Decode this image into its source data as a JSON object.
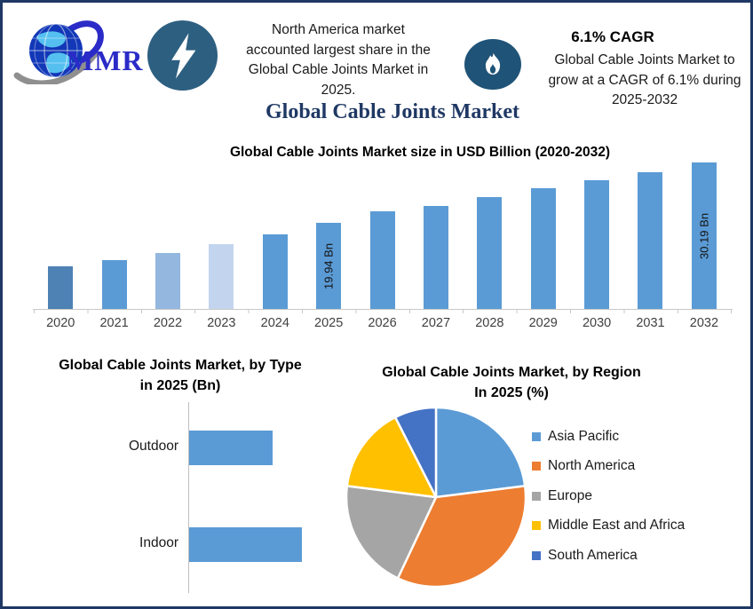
{
  "header": {
    "logo_text": "MMR",
    "callout_lines": [
      "North America market",
      "accounted largest share in the",
      "Global Cable Joints Market in",
      "2025."
    ],
    "cagr_title": "6.1% CAGR",
    "cagr_lines": [
      "Global Cable Joints Market to",
      "grow at a CAGR of 6.1% during",
      "2025-2032"
    ]
  },
  "title": "Global Cable Joints Market",
  "colors": {
    "frame_border": "#1F3864",
    "main_title": "#1F3864",
    "mmr_blue": "#2B2BC8",
    "lightning_badge": "#2D5F80",
    "flame_badge": "#1F5377",
    "axis_gray": "#C9C9C9",
    "primary_bar_blue": "#5B9BD5"
  },
  "chart_data": [
    {
      "type": "bar",
      "title": "Global Cable Joints Market size in USD Billion (2020-2032)",
      "categories": [
        "2020",
        "2021",
        "2022",
        "2023",
        "2024",
        "2025",
        "2026",
        "2027",
        "2028",
        "2029",
        "2030",
        "2031",
        "2032"
      ],
      "values": [
        12.5,
        13.6,
        14.8,
        16.3,
        18.0,
        19.94,
        21.9,
        22.8,
        24.3,
        25.8,
        27.2,
        28.5,
        30.19
      ],
      "data_labels": [
        "",
        "",
        "",
        "",
        "",
        "19.94 Bn",
        "",
        "",
        "",
        "",
        "",
        "",
        "30.19 Bn"
      ],
      "bar_colors": [
        "#4E81B4",
        "#5B9BD5",
        "#93B7DF",
        "#C3D5EE",
        "#5B9BD5",
        "#5B9BD5",
        "#5B9BD5",
        "#5B9BD5",
        "#5B9BD5",
        "#5B9BD5",
        "#5B9BD5",
        "#5B9BD5",
        "#5B9BD5"
      ],
      "unit": "USD Billion",
      "grid": false,
      "legend": false
    },
    {
      "type": "bar",
      "orientation": "horizontal",
      "title_lines": [
        "Global Cable Joints Market, by Type",
        "in 2025 (Bn)"
      ],
      "categories": [
        "Outdoor",
        "Indoor"
      ],
      "values": [
        8.5,
        11.5
      ],
      "bar_color": "#5B9BD5",
      "unit": "Bn",
      "grid": false,
      "legend": false
    },
    {
      "type": "pie",
      "title_lines": [
        "Global Cable Joints Market, by Region",
        "In 2025 (%)"
      ],
      "labels": [
        "Asia Pacific",
        "North America",
        "Europe",
        "Middle East and Africa",
        "South America"
      ],
      "values": [
        23,
        34,
        20,
        15.5,
        7.5
      ],
      "colors": [
        "#5B9BD5",
        "#ED7D31",
        "#A5A5A5",
        "#FFC000",
        "#4472C4"
      ],
      "unit": "%",
      "legend_position": "right",
      "start_angle_deg": 0,
      "direction": "clockwise"
    }
  ]
}
